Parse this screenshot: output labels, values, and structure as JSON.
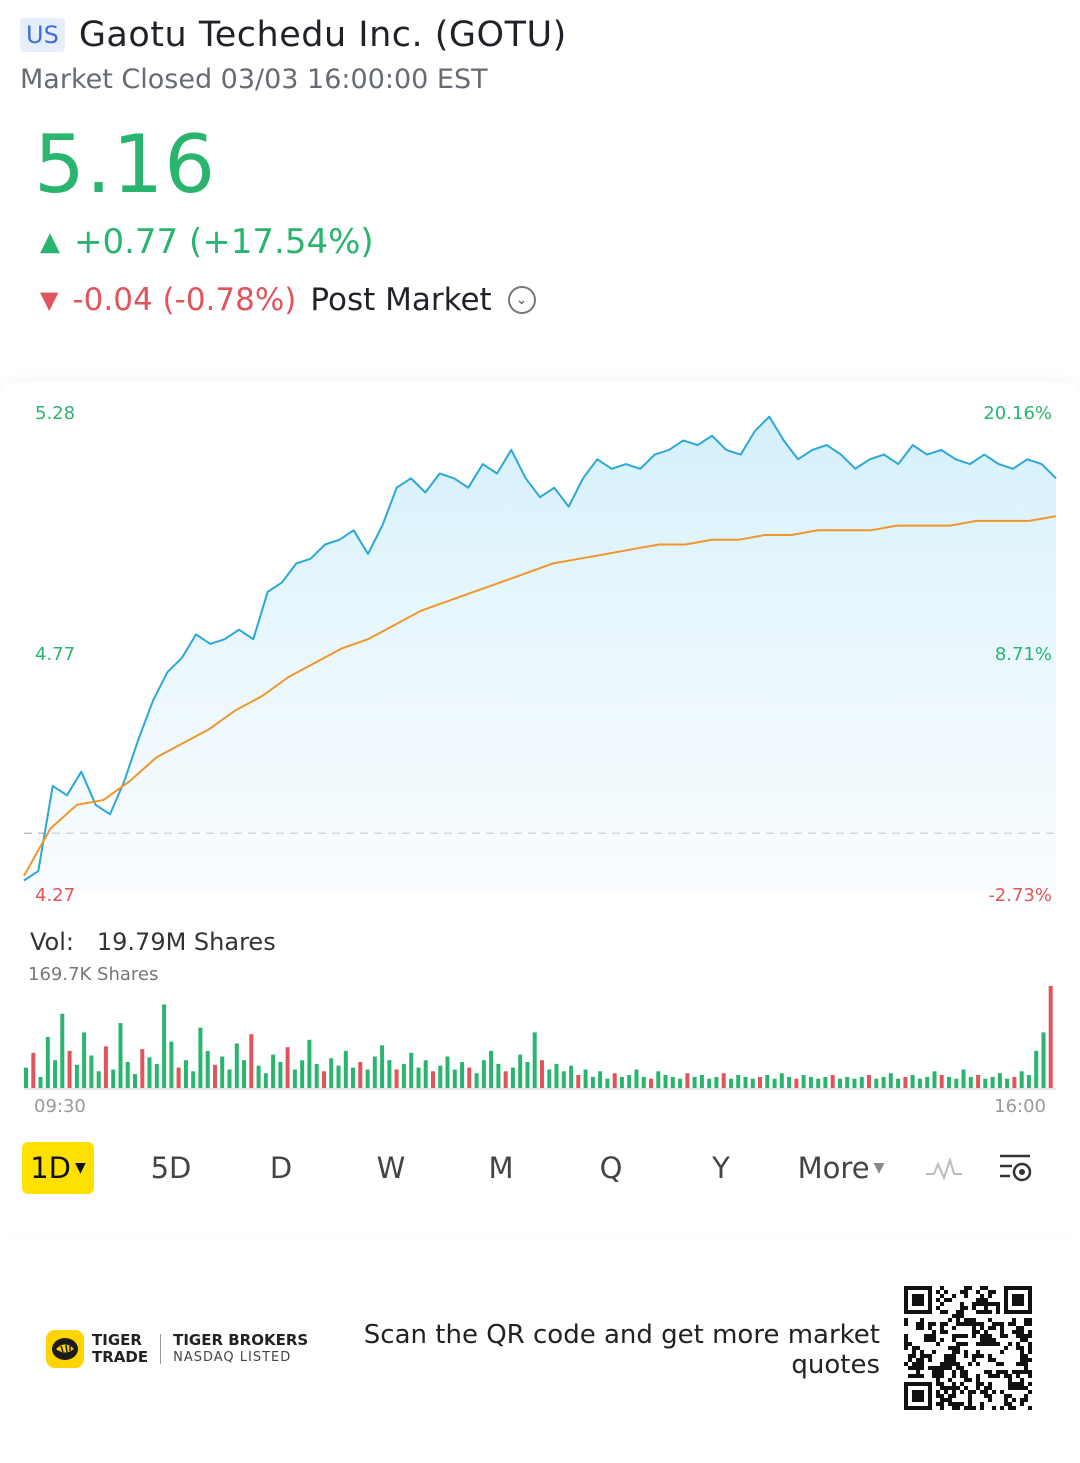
{
  "header": {
    "market_badge": "US",
    "stock_name": "Gaotu Techedu Inc. (GOTU)",
    "market_status": "Market Closed 03/03 16:00:00 EST"
  },
  "quote": {
    "price": "5.16",
    "change": "+0.77 (+17.54%)",
    "post_change": "-0.04 (-0.78%)",
    "post_label": "Post Market",
    "up_color": "#2ab56f",
    "down_color": "#e0545b"
  },
  "chart_labels": {
    "left_top": "5.28",
    "left_mid": "4.77",
    "left_bottom": "4.27",
    "right_top": "20.16%",
    "right_mid": "8.71%",
    "right_bottom": "-2.73%"
  },
  "chart_data": {
    "type": "line",
    "ylim": [
      4.27,
      5.28
    ],
    "reference_price": 4.39,
    "series": [
      {
        "values": [
          4.29,
          4.31,
          4.49,
          4.47,
          4.52,
          4.45,
          4.43,
          4.5,
          4.59,
          4.67,
          4.73,
          4.76,
          4.81,
          4.79,
          4.8,
          4.82,
          4.8,
          4.9,
          4.92,
          4.96,
          4.97,
          5.0,
          5.01,
          5.03,
          4.98,
          5.04,
          5.12,
          5.14,
          5.11,
          5.15,
          5.14,
          5.12,
          5.17,
          5.15,
          5.2,
          5.14,
          5.1,
          5.12,
          5.08,
          5.14,
          5.18,
          5.16,
          5.17,
          5.16,
          5.19,
          5.2,
          5.22,
          5.21,
          5.23,
          5.2,
          5.19,
          5.24,
          5.27,
          5.22,
          5.18,
          5.2,
          5.21,
          5.19,
          5.16,
          5.18,
          5.19,
          5.17,
          5.21,
          5.19,
          5.2,
          5.18,
          5.17,
          5.19,
          5.17,
          5.16,
          5.18,
          5.17,
          5.14
        ]
      },
      {
        "values": [
          4.3,
          4.4,
          4.45,
          4.46,
          4.5,
          4.55,
          4.58,
          4.61,
          4.65,
          4.68,
          4.72,
          4.75,
          4.78,
          4.8,
          4.83,
          4.86,
          4.88,
          4.9,
          4.92,
          4.94,
          4.96,
          4.97,
          4.98,
          4.99,
          5.0,
          5.0,
          5.01,
          5.01,
          5.02,
          5.02,
          5.03,
          5.03,
          5.03,
          5.04,
          5.04,
          5.04,
          5.05,
          5.05,
          5.05,
          5.06
        ]
      }
    ]
  },
  "volume": {
    "label": "Vol:",
    "value": "19.79M Shares",
    "max_label": "169.7K Shares",
    "bars": [
      22,
      38,
      12,
      55,
      30,
      80,
      40,
      25,
      60,
      35,
      18,
      45,
      20,
      70,
      28,
      15,
      42,
      33,
      26,
      90,
      50,
      22,
      30,
      18,
      65,
      40,
      25,
      34,
      20,
      48,
      30,
      58,
      24,
      16,
      36,
      28,
      44,
      20,
      30,
      52,
      26,
      18,
      32,
      24,
      40,
      22,
      28,
      20,
      34,
      46,
      30,
      20,
      26,
      38,
      22,
      30,
      18,
      24,
      34,
      20,
      28,
      22,
      16,
      30,
      40,
      26,
      18,
      22,
      36,
      28,
      60,
      30,
      20,
      26,
      18,
      24,
      14,
      20,
      12,
      18,
      10,
      16,
      12,
      14,
      20,
      12,
      10,
      18,
      14,
      12,
      10,
      16,
      12,
      14,
      10,
      12,
      16,
      10,
      14,
      12,
      10,
      12,
      14,
      10,
      16,
      12,
      10,
      14,
      12,
      10,
      12,
      14,
      10,
      12,
      10,
      12,
      14,
      10,
      12,
      16,
      10,
      12,
      14,
      10,
      12,
      18,
      14,
      12,
      10,
      20,
      12,
      14,
      10,
      12,
      16,
      10,
      12,
      18,
      14,
      40,
      60,
      110
    ]
  },
  "time_axis": {
    "start": "09:30",
    "end": "16:00"
  },
  "periods": [
    {
      "label": "1D",
      "active": true
    },
    {
      "label": "5D"
    },
    {
      "label": "D"
    },
    {
      "label": "W"
    },
    {
      "label": "M"
    },
    {
      "label": "Q"
    },
    {
      "label": "Y"
    },
    {
      "label": "More"
    }
  ],
  "icons": {
    "trend": "line-chart-icon",
    "settings": "chart-settings-icon"
  },
  "footer": {
    "brand_line1": "TIGER",
    "brand_line2": "TRADE",
    "broker_name": "TIGER BROKERS",
    "broker_listed": "NASDAQ LISTED",
    "scan_text": "Scan the QR code and get more market quotes"
  }
}
